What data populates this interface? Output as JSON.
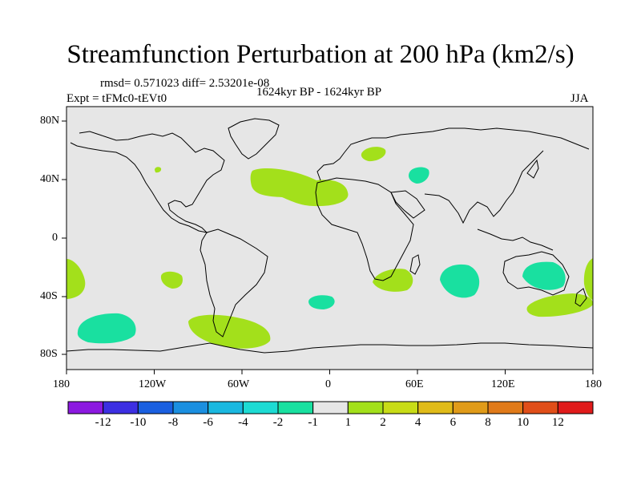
{
  "chart_data": {
    "type": "heatmap",
    "title": "Streamfunction Perturbation at 200 hPa (km2/s)",
    "stats_label": "rmsd= 0.571023 diff= 2.53201e-08",
    "center_label": "1624kyr BP - 1624kyr BP",
    "left_label": "Expt = tFMc0-tEVt0",
    "right_label": "JJA",
    "x_ticks": [
      "180",
      "120W",
      "60W",
      "0",
      "60E",
      "120E",
      "180"
    ],
    "y_ticks": [
      "80N",
      "40N",
      "0",
      "40S",
      "80S"
    ],
    "colorbar": {
      "colors": [
        "#8c19e0",
        "#3c2fe2",
        "#1a5fe0",
        "#1b8fe0",
        "#1ab8e0",
        "#1ddbd3",
        "#19e0a0",
        "#e6e6e6",
        "#a3e01b",
        "#c8dc17",
        "#e0bb19",
        "#e09b19",
        "#e07a19",
        "#e04e19",
        "#e01b1b"
      ],
      "labels": [
        "-12",
        "-10",
        "-8",
        "-6",
        "-4",
        "-2",
        "-1",
        "1",
        "2",
        "4",
        "6",
        "8",
        "10",
        "12"
      ]
    },
    "anomalies": [
      {
        "region": "North Atlantic / North Africa",
        "value": 1.5,
        "color": "#a3e01b"
      },
      {
        "region": "Scandinavia",
        "value": 1.5,
        "color": "#a3e01b"
      },
      {
        "region": "Caspian Sea",
        "value": -1.5,
        "color": "#19e0a0"
      },
      {
        "region": "North America west",
        "value": 1.5,
        "color": "#a3e01b"
      },
      {
        "region": "Southeast Pacific 180",
        "value": 1.5,
        "color": "#a3e01b"
      },
      {
        "region": "South America west",
        "value": 1.5,
        "color": "#a3e01b"
      },
      {
        "region": "South Atlantic",
        "value": -1.5,
        "color": "#19e0a0"
      },
      {
        "region": "Southern Africa",
        "value": 1.5,
        "color": "#a3e01b"
      },
      {
        "region": "South Indian Ocean",
        "value": -1.5,
        "color": "#19e0a0"
      },
      {
        "region": "Australia",
        "value": -1.5,
        "color": "#19e0a0"
      },
      {
        "region": "Tasman / South Australia",
        "value": 1.5,
        "color": "#a3e01b"
      },
      {
        "region": "South Pacific",
        "value": -1.5,
        "color": "#19e0a0"
      },
      {
        "region": "Drake Passage",
        "value": 1.5,
        "color": "#a3e01b"
      }
    ]
  }
}
